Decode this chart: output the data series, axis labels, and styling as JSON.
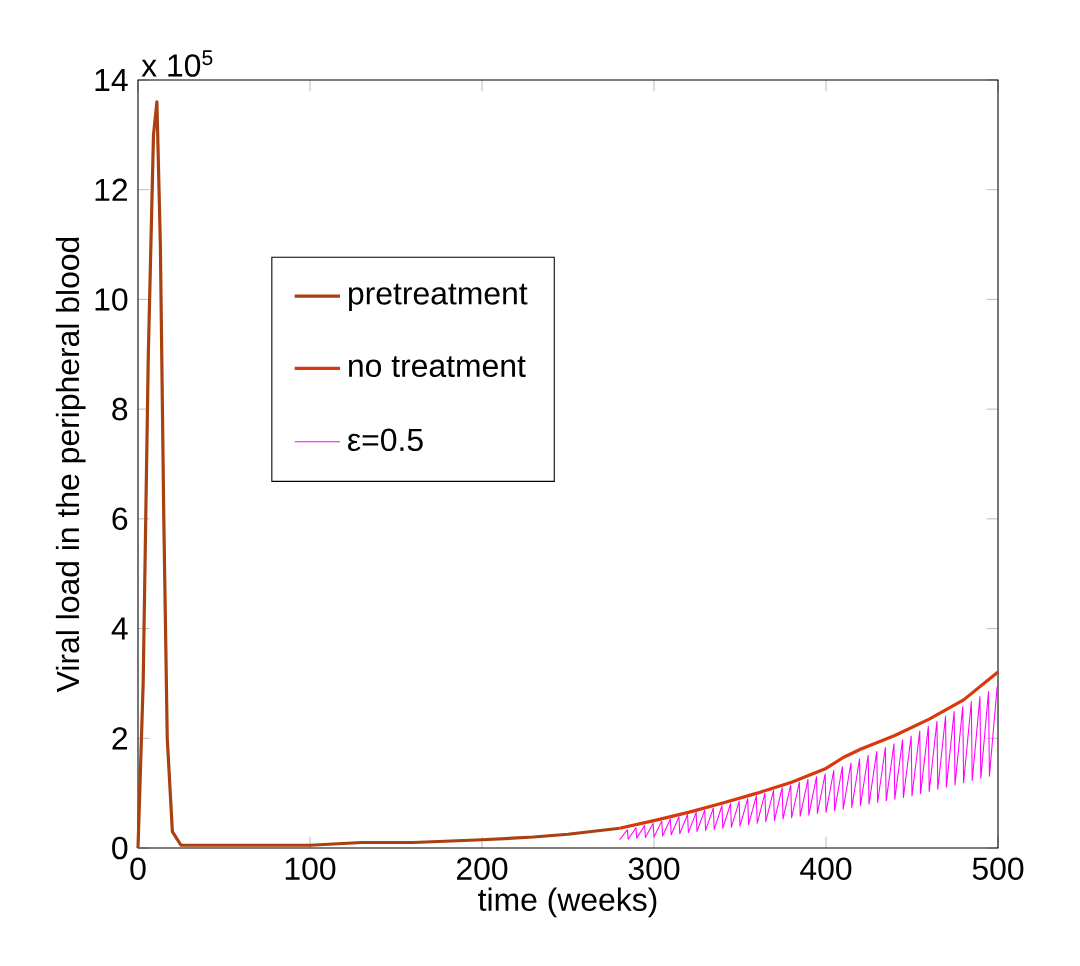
{
  "chart_data": {
    "type": "line",
    "xlabel": "time (weeks)",
    "ylabel": "Viral load in the peripheral blood",
    "annotations": [
      "x 10$^{5}$"
    ],
    "xlim": [
      0,
      500
    ],
    "xticks": [
      0,
      100,
      200,
      300,
      400,
      500
    ],
    "ylim": [
      0,
      14
    ],
    "yticks": [
      0,
      2,
      4,
      6,
      8,
      10,
      12,
      14
    ],
    "legend": "top left",
    "grid": false,
    "series": [
      {
        "name": "pretreatment",
        "color": "#a8400f",
        "x": [
          0,
          3,
          6,
          9,
          11,
          13,
          15,
          17,
          20,
          25,
          50,
          100,
          130,
          160,
          200,
          230,
          250,
          280
        ],
        "values": [
          0,
          3,
          9,
          13,
          13.6,
          11,
          6,
          2,
          0.3,
          0.05,
          0.05,
          0.05,
          0.1,
          0.1,
          0.15,
          0.2,
          0.25,
          0.36
        ]
      },
      {
        "name": "no treatment",
        "color": "#d9380c",
        "x": [
          280,
          300,
          320,
          340,
          360,
          380,
          400,
          410,
          420,
          440,
          460,
          480,
          500
        ],
        "values": [
          0.36,
          0.5,
          0.65,
          0.82,
          1.0,
          1.2,
          1.45,
          1.65,
          1.8,
          2.05,
          2.35,
          2.7,
          3.21
        ]
      },
      {
        "name": "ε=0.5",
        "color": "#ff00ff",
        "x": [
          280,
          284.5,
          285,
          289.5,
          290,
          294.5,
          295,
          299.5,
          300,
          304.5,
          305,
          309.5,
          310,
          314.5,
          315,
          319.5,
          320,
          324.5,
          325,
          329.5,
          330,
          334.5,
          335,
          339.5,
          340,
          344.5,
          345,
          349.5,
          350,
          354.5,
          355,
          359.5,
          360,
          364.5,
          365,
          369.5,
          370,
          374.5,
          375,
          379.5,
          380,
          384.5,
          385,
          389.5,
          390,
          394.5,
          395,
          399.5,
          400,
          404.5,
          405,
          409.5,
          410,
          414.5,
          415,
          419.5,
          420,
          424.5,
          425,
          429.5,
          430,
          434.5,
          435,
          439.5,
          440,
          444.5,
          445,
          449.5,
          450,
          454.5,
          455,
          459.5,
          460,
          464.5,
          465,
          469.5,
          470,
          474.5,
          475,
          479.5,
          480,
          484.5,
          485,
          489.5,
          490,
          494.5,
          495,
          499.5
        ],
        "values": [
          0.15,
          0.33,
          0.16,
          0.37,
          0.18,
          0.41,
          0.19,
          0.45,
          0.2,
          0.49,
          0.22,
          0.53,
          0.24,
          0.57,
          0.26,
          0.61,
          0.28,
          0.65,
          0.3,
          0.69,
          0.32,
          0.73,
          0.34,
          0.77,
          0.36,
          0.81,
          0.38,
          0.85,
          0.4,
          0.9,
          0.43,
          0.95,
          0.45,
          1.0,
          0.48,
          1.05,
          0.5,
          1.1,
          0.53,
          1.15,
          0.55,
          1.2,
          0.58,
          1.25,
          0.6,
          1.3,
          0.63,
          1.35,
          0.65,
          1.41,
          0.68,
          1.48,
          0.71,
          1.55,
          0.74,
          1.62,
          0.77,
          1.69,
          0.8,
          1.76,
          0.83,
          1.83,
          0.86,
          1.9,
          0.89,
          1.97,
          0.92,
          2.04,
          0.95,
          2.13,
          0.99,
          2.22,
          1.03,
          2.31,
          1.07,
          2.4,
          1.11,
          2.49,
          1.15,
          2.58,
          1.19,
          2.67,
          1.23,
          2.76,
          1.27,
          2.85,
          1.31,
          2.94
        ]
      }
    ]
  }
}
